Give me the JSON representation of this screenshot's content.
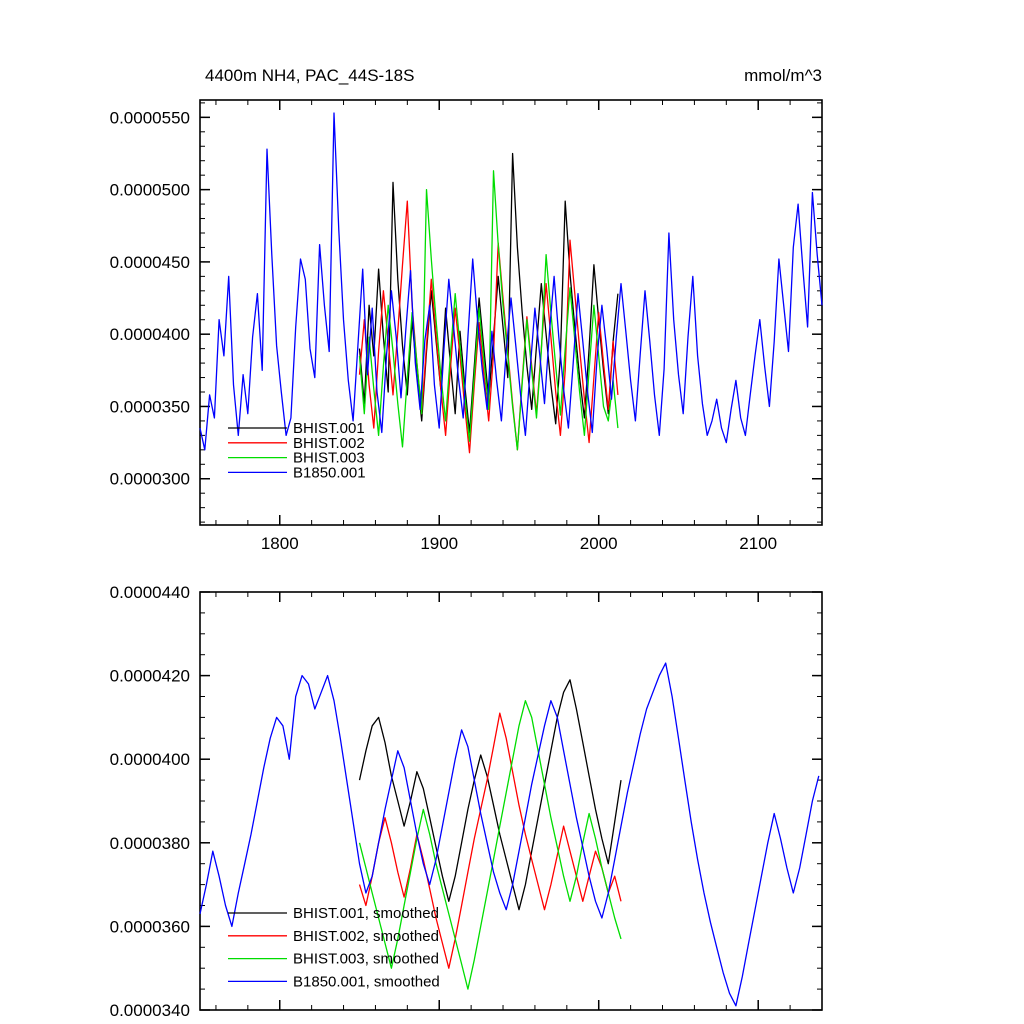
{
  "page": {
    "background": "#ffffff"
  },
  "chart_data": [
    {
      "type": "line",
      "title": "4400m NH4, PAC_44S-18S",
      "unit_label": "mmol/m^3",
      "xlim": [
        1750,
        2140
      ],
      "xticks": [
        1800,
        1900,
        2000,
        2100
      ],
      "xtick_labels": [
        "1800",
        "1900",
        "2000",
        "2100"
      ],
      "xminor_step": 20,
      "show_x_labels": true,
      "grid": false,
      "legend_position": "inside-bottom-left",
      "y_unit_scale": "1e-7",
      "ylim": [
        268,
        562
      ],
      "yticks": [
        300,
        350,
        400,
        450,
        500,
        550
      ],
      "ytick_labels": [
        "0.0000300",
        "0.0000350",
        "0.0000400",
        "0.0000450",
        "0.0000500",
        "0.0000550"
      ],
      "yminor_step": 10,
      "series": [
        {
          "name": "BHIST.001",
          "legend": "BHIST.001",
          "color": "#000000",
          "x_start": 1850,
          "x_step": 3,
          "values": [
            390,
            352,
            420,
            385,
            445,
            398,
            360,
            505,
            438,
            392,
            358,
            410,
            372,
            340,
            388,
            430,
            396,
            362,
            418,
            380,
            345,
            402,
            365,
            332,
            378,
            425,
            390,
            355,
            398,
            440,
            405,
            370,
            525,
            460,
            415,
            378,
            348,
            392,
            435,
            400,
            365,
            338,
            385,
            492,
            442,
            405,
            370,
            342,
            390,
            448,
            410,
            375,
            345,
            395,
            428
          ]
        },
        {
          "name": "BHIST.002",
          "legend": "BHIST.002",
          "color": "#ff0000",
          "x_start": 1850,
          "x_step": 3,
          "values": [
            372,
            410,
            365,
            335,
            388,
            430,
            395,
            358,
            402,
            448,
            492,
            420,
            380,
            345,
            392,
            438,
            400,
            362,
            330,
            376,
            418,
            385,
            350,
            318,
            365,
            408,
            372,
            340,
            386,
            463,
            425,
            388,
            352,
            320,
            368,
            412,
            378,
            345,
            390,
            435,
            398,
            360,
            330,
            375,
            465,
            428,
            390,
            355,
            325,
            370,
            415,
            380,
            348,
            395,
            358
          ]
        },
        {
          "name": "BHIST.003",
          "legend": "BHIST.003",
          "color": "#00dd00",
          "x_start": 1850,
          "x_step": 3,
          "values": [
            385,
            345,
            398,
            362,
            330,
            378,
            420,
            388,
            352,
            322,
            370,
            415,
            380,
            345,
            500,
            452,
            410,
            372,
            340,
            386,
            428,
            392,
            358,
            326,
            372,
            418,
            382,
            348,
            513,
            462,
            420,
            385,
            350,
            320,
            366,
            410,
            375,
            342,
            388,
            455,
            415,
            378,
            344,
            390,
            432,
            396,
            360,
            330,
            375,
            420,
            385,
            350,
            340,
            368,
            335
          ]
        },
        {
          "name": "B1850.001",
          "legend": "B1850.001",
          "color": "#0000ff",
          "x_start": 1750,
          "x_step": 3,
          "values": [
            335,
            320,
            358,
            342,
            410,
            385,
            440,
            365,
            330,
            372,
            345,
            398,
            428,
            375,
            528,
            455,
            392,
            360,
            330,
            342,
            405,
            452,
            438,
            390,
            370,
            462,
            420,
            388,
            553,
            472,
            410,
            368,
            340,
            392,
            445,
            372,
            418,
            360,
            332,
            386,
            430,
            398,
            356,
            402,
            444,
            380,
            348,
            396,
            420,
            365,
            335,
            390,
            438,
            405,
            370,
            342,
            398,
            452,
            410,
            375,
            348,
            402,
            368,
            340,
            388,
            425,
            392,
            358,
            330,
            375,
            418,
            386,
            352,
            400,
            440,
            398,
            362,
            335,
            380,
            428,
            395,
            360,
            332,
            384,
            420,
            390,
            355,
            398,
            435,
            402,
            368,
            340,
            386,
            430,
            395,
            358,
            330,
            376,
            470,
            410,
            372,
            345,
            398,
            440,
            385,
            352,
            330,
            340,
            355,
            335,
            325,
            348,
            368,
            342,
            330,
            358,
            385,
            410,
            378,
            350,
            395,
            452,
            420,
            388,
            460,
            490,
            445,
            405,
            498,
            455,
            420
          ]
        }
      ]
    },
    {
      "type": "line",
      "title": "",
      "unit_label": "",
      "xlim": [
        1750,
        2140
      ],
      "xticks": [
        1800,
        1900,
        2000,
        2100
      ],
      "xtick_labels": [],
      "xminor_step": 20,
      "show_x_labels": false,
      "grid": false,
      "legend_position": "inside-bottom-left",
      "y_unit_scale": "1e-7",
      "ylim": [
        340,
        440
      ],
      "yticks": [
        340,
        360,
        380,
        400,
        420,
        440
      ],
      "ytick_labels": [
        "0.0000340",
        "0.0000360",
        "0.0000380",
        "0.0000400",
        "0.0000420",
        "0.0000440"
      ],
      "yminor_step": 5,
      "series": [
        {
          "name": "BHIST.001-smoothed",
          "legend": "BHIST.001, smoothed",
          "color": "#000000",
          "x_start": 1850,
          "x_step": 4,
          "values": [
            395,
            402,
            408,
            410,
            404,
            396,
            390,
            384,
            390,
            397,
            393,
            386,
            379,
            372,
            366,
            372,
            380,
            388,
            395,
            401,
            396,
            389,
            382,
            376,
            370,
            364,
            370,
            378,
            386,
            394,
            402,
            410,
            416,
            419,
            412,
            404,
            396,
            388,
            381,
            375,
            385,
            395
          ]
        },
        {
          "name": "BHIST.002-smoothed",
          "legend": "BHIST.002, smoothed",
          "color": "#ff0000",
          "x_start": 1850,
          "x_step": 4,
          "values": [
            370,
            365,
            372,
            380,
            386,
            380,
            373,
            367,
            374,
            382,
            376,
            369,
            362,
            356,
            350,
            357,
            365,
            373,
            381,
            388,
            395,
            403,
            411,
            405,
            397,
            389,
            382,
            376,
            370,
            364,
            370,
            377,
            384,
            378,
            372,
            366,
            372,
            378,
            374,
            368,
            372,
            366
          ]
        },
        {
          "name": "BHIST.003-smoothed",
          "legend": "BHIST.003, smoothed",
          "color": "#00dd00",
          "x_start": 1850,
          "x_step": 4,
          "values": [
            380,
            374,
            368,
            362,
            356,
            350,
            357,
            365,
            373,
            381,
            388,
            382,
            375,
            369,
            363,
            357,
            351,
            345,
            352,
            360,
            368,
            376,
            384,
            392,
            400,
            408,
            414,
            410,
            402,
            394,
            386,
            379,
            372,
            366,
            372,
            380,
            387,
            381,
            374,
            368,
            362,
            357
          ]
        },
        {
          "name": "B1850.001-smoothed",
          "legend": "B1850.001, smoothed",
          "color": "#0000ff",
          "x_start": 1750,
          "x_step": 4,
          "values": [
            363,
            370,
            378,
            372,
            365,
            360,
            368,
            375,
            382,
            390,
            398,
            405,
            410,
            408,
            400,
            415,
            420,
            418,
            412,
            416,
            420,
            414,
            405,
            395,
            385,
            375,
            368,
            372,
            380,
            388,
            395,
            402,
            398,
            390,
            382,
            375,
            370,
            376,
            384,
            392,
            400,
            407,
            403,
            395,
            387,
            380,
            373,
            368,
            364,
            370,
            378,
            386,
            394,
            401,
            408,
            414,
            410,
            402,
            394,
            386,
            379,
            372,
            366,
            362,
            368,
            376,
            384,
            392,
            399,
            406,
            412,
            416,
            420,
            423,
            415,
            405,
            395,
            385,
            376,
            368,
            361,
            355,
            349,
            344,
            341,
            348,
            356,
            364,
            372,
            380,
            387,
            381,
            374,
            368,
            374,
            382,
            390,
            396
          ]
        }
      ]
    }
  ]
}
